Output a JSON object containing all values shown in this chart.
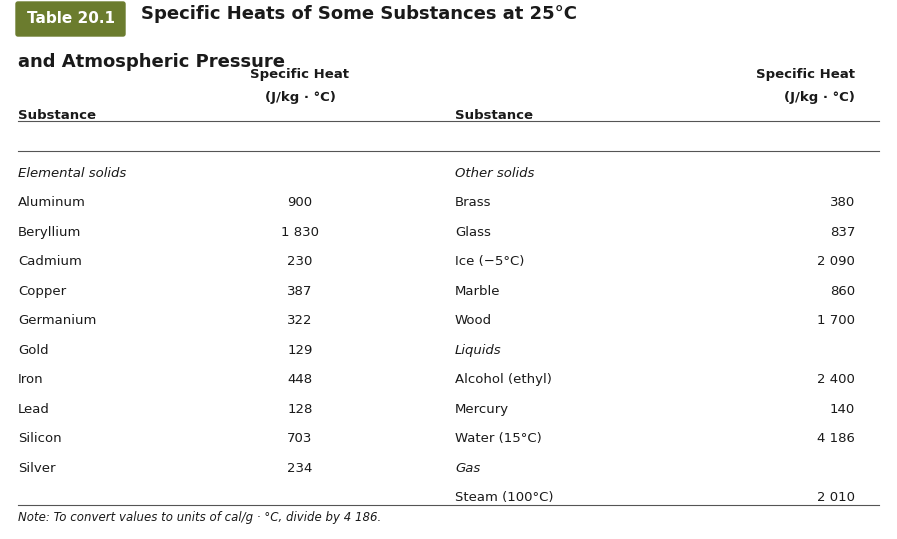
{
  "title_label": "Table 20.1",
  "title_text": "Specific Heats of Some Substances at 25°C\nand Atmospheric Pressure",
  "title_label_bg": "#6b7c2e",
  "title_label_color": "#ffffff",
  "col_headers": [
    "Substance",
    "Specific Heat\n(J/kg · °C)",
    "Substance",
    "Specific Heat\n(J/kg · °C)"
  ],
  "left_section_header": "Elemental solids",
  "right_section_headers": [
    "Other solids",
    "Liquids",
    "Gas"
  ],
  "left_data": [
    [
      "Aluminum",
      "900"
    ],
    [
      "Beryllium",
      "1 830"
    ],
    [
      "Cadmium",
      "230"
    ],
    [
      "Copper",
      "387"
    ],
    [
      "Germanium",
      "322"
    ],
    [
      "Gold",
      "129"
    ],
    [
      "Iron",
      "448"
    ],
    [
      "Lead",
      "128"
    ],
    [
      "Silicon",
      "703"
    ],
    [
      "Silver",
      "234"
    ]
  ],
  "right_data": [
    [
      "Other solids",
      ""
    ],
    [
      "Brass",
      "380"
    ],
    [
      "Glass",
      "837"
    ],
    [
      "Ice (−5°C)",
      "2 090"
    ],
    [
      "Marble",
      "860"
    ],
    [
      "Wood",
      "1 700"
    ],
    [
      "Liquids",
      ""
    ],
    [
      "Alcohol (ethyl)",
      "2 400"
    ],
    [
      "Mercury",
      "140"
    ],
    [
      "Water (15°C)",
      "4 186"
    ],
    [
      "Gas",
      ""
    ],
    [
      "Steam (100°C)",
      "2 010"
    ]
  ],
  "note": "Note: To convert values to units of cal/g · °C, divide by 4 186.",
  "bg_color": "#ffffff",
  "text_color": "#1a1a1a",
  "section_italic": true,
  "header_line_color": "#555555"
}
